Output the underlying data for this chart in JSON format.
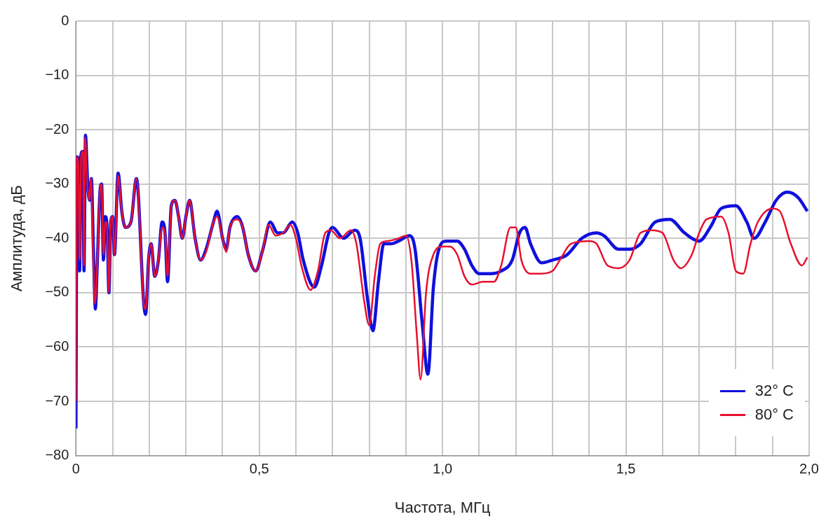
{
  "chart_data": {
    "type": "line",
    "xlabel": "Частота, МГц",
    "ylabel": "Амплитуда, дБ",
    "xlim": [
      0,
      2
    ],
    "ylim": [
      -80,
      0
    ],
    "xticks": [
      0,
      {
        "value": 0.1,
        "label": null
      },
      {
        "value": 0.2,
        "label": null
      },
      {
        "value": 0.3,
        "label": null
      },
      {
        "value": 0.4,
        "label": null
      },
      {
        "value": 0.5,
        "label": "0,5"
      },
      {
        "value": 0.6,
        "label": null
      },
      {
        "value": 0.7,
        "label": null
      },
      {
        "value": 0.8,
        "label": null
      },
      {
        "value": 0.9,
        "label": null
      },
      {
        "value": 1.0,
        "label": "1,0"
      },
      {
        "value": 1.1,
        "label": null
      },
      {
        "value": 1.2,
        "label": null
      },
      {
        "value": 1.3,
        "label": null
      },
      {
        "value": 1.4,
        "label": null
      },
      {
        "value": 1.5,
        "label": "1,5"
      },
      {
        "value": 1.6,
        "label": null
      },
      {
        "value": 1.7,
        "label": null
      },
      {
        "value": 1.8,
        "label": null
      },
      {
        "value": 1.9,
        "label": null
      },
      {
        "value": 2.0,
        "label": "2,0"
      }
    ],
    "yticks": [
      {
        "value": -80,
        "label": "−80"
      },
      {
        "value": -70,
        "label": "−70"
      },
      {
        "value": -60,
        "label": "−60"
      },
      {
        "value": -50,
        "label": "−50"
      },
      {
        "value": -40,
        "label": "−40"
      },
      {
        "value": -30,
        "label": "−30"
      },
      {
        "value": -20,
        "label": "−20"
      },
      {
        "value": -10,
        "label": "−10"
      },
      0
    ],
    "grid": true,
    "legend": "bottom right",
    "line_style": "solid",
    "marker": "none",
    "series": [
      {
        "name": "32° C",
        "color": "#1010dd",
        "x": [
          0,
          0.003,
          0.007,
          0.01,
          0.013,
          0.018,
          0.022,
          0.026,
          0.032,
          0.037,
          0.042,
          0.048,
          0.053,
          0.058,
          0.066,
          0.07,
          0.075,
          0.08,
          0.085,
          0.09,
          0.095,
          0.1,
          0.105,
          0.115,
          0.125,
          0.135,
          0.15,
          0.165,
          0.185,
          0.19,
          0.198,
          0.205,
          0.215,
          0.225,
          0.235,
          0.243,
          0.25,
          0.26,
          0.27,
          0.28,
          0.29,
          0.3,
          0.31,
          0.325,
          0.34,
          0.355,
          0.375,
          0.385,
          0.4,
          0.41,
          0.42,
          0.44,
          0.455,
          0.47,
          0.49,
          0.51,
          0.53,
          0.55,
          0.565,
          0.59,
          0.605,
          0.62,
          0.65,
          0.67,
          0.69,
          0.7,
          0.73,
          0.76,
          0.775,
          0.795,
          0.81,
          0.825,
          0.84,
          0.86,
          0.88,
          0.91,
          0.925,
          0.945,
          0.96,
          0.975,
          0.99,
          1.01,
          1.04,
          1.06,
          1.08,
          1.1,
          1.13,
          1.16,
          1.19,
          1.21,
          1.225,
          1.24,
          1.27,
          1.3,
          1.34,
          1.38,
          1.42,
          1.44,
          1.48,
          1.51,
          1.54,
          1.58,
          1.62,
          1.66,
          1.7,
          1.73,
          1.76,
          1.8,
          1.83,
          1.85,
          1.88,
          1.91,
          1.94,
          1.97,
          1.995
        ],
        "values": [
          -75,
          -25,
          -26,
          -46,
          -25,
          -24,
          -46,
          -21,
          -30,
          -33,
          -29,
          -43,
          -53,
          -45,
          -31,
          -30,
          -44,
          -36,
          -38,
          -50,
          -37,
          -36,
          -43,
          -28,
          -35,
          -38,
          -37,
          -29,
          -52,
          -54,
          -44,
          -41,
          -47,
          -44,
          -37,
          -39,
          -48,
          -34,
          -33,
          -36,
          -40,
          -36,
          -33,
          -40,
          -44,
          -42,
          -37,
          -35,
          -40,
          -42,
          -38,
          -36,
          -38,
          -43,
          -46,
          -42,
          -37,
          -39,
          -39,
          -37,
          -39,
          -44,
          -49,
          -45,
          -39,
          -38,
          -40,
          -38.5,
          -40,
          -51,
          -57,
          -48,
          -41,
          -41,
          -40.5,
          -39.5,
          -42,
          -56,
          -65,
          -49,
          -42,
          -40.5,
          -40.5,
          -42,
          -45,
          -46.5,
          -46.5,
          -46,
          -44,
          -39,
          -38,
          -41,
          -44.5,
          -44,
          -43,
          -40,
          -39,
          -39.5,
          -42,
          -42,
          -41,
          -37,
          -36.5,
          -39,
          -40.5,
          -38,
          -34.5,
          -34,
          -37,
          -40,
          -37,
          -33,
          -31.5,
          -32.5,
          -35
        ]
      },
      {
        "name": "80° C",
        "color": "#e8102e",
        "x": [
          0,
          0.002,
          0.006,
          0.01,
          0.014,
          0.019,
          0.022,
          0.025,
          0.031,
          0.036,
          0.041,
          0.047,
          0.052,
          0.058,
          0.066,
          0.07,
          0.075,
          0.08,
          0.085,
          0.09,
          0.095,
          0.1,
          0.105,
          0.115,
          0.125,
          0.135,
          0.15,
          0.165,
          0.185,
          0.19,
          0.198,
          0.205,
          0.215,
          0.225,
          0.235,
          0.243,
          0.25,
          0.26,
          0.27,
          0.28,
          0.29,
          0.3,
          0.31,
          0.325,
          0.34,
          0.355,
          0.375,
          0.385,
          0.4,
          0.41,
          0.42,
          0.44,
          0.455,
          0.47,
          0.49,
          0.51,
          0.525,
          0.545,
          0.565,
          0.585,
          0.6,
          0.615,
          0.64,
          0.66,
          0.68,
          0.695,
          0.72,
          0.75,
          0.765,
          0.785,
          0.8,
          0.815,
          0.83,
          0.85,
          0.88,
          0.9,
          0.915,
          0.93,
          0.94,
          0.955,
          0.975,
          1.0,
          1.02,
          1.04,
          1.06,
          1.08,
          1.11,
          1.14,
          1.16,
          1.185,
          1.2,
          1.215,
          1.24,
          1.27,
          1.3,
          1.32,
          1.35,
          1.4,
          1.42,
          1.45,
          1.48,
          1.51,
          1.54,
          1.57,
          1.6,
          1.63,
          1.65,
          1.68,
          1.7,
          1.72,
          1.76,
          1.78,
          1.8,
          1.82,
          1.84,
          1.86,
          1.9,
          1.92,
          1.95,
          1.98,
          1.995
        ],
        "values": [
          -70,
          -25,
          -26,
          -44,
          -25,
          -24,
          -45,
          -21.5,
          -30,
          -33,
          -29,
          -43,
          -52,
          -45,
          -31,
          -30,
          -43,
          -37,
          -38,
          -50,
          -37,
          -36,
          -43,
          -28.5,
          -35,
          -38,
          -37,
          -29,
          -52,
          -53,
          -44,
          -41,
          -47,
          -44,
          -38,
          -39,
          -47,
          -34,
          -33,
          -36,
          -40,
          -36,
          -33,
          -40,
          -44,
          -42.5,
          -37,
          -36,
          -40,
          -42.5,
          -38,
          -36.5,
          -38,
          -43,
          -46,
          -42,
          -37.5,
          -39.5,
          -39,
          -37.5,
          -40,
          -45,
          -49.5,
          -46,
          -39,
          -38.5,
          -40,
          -38.5,
          -41,
          -51,
          -56,
          -47,
          -41,
          -40.5,
          -40,
          -39.5,
          -44,
          -58,
          -66,
          -50,
          -43,
          -41.5,
          -41.5,
          -43,
          -47,
          -48.5,
          -48,
          -48,
          -45,
          -38,
          -38,
          -44,
          -46.5,
          -46.5,
          -46,
          -44,
          -41,
          -40.5,
          -41,
          -45,
          -45.5,
          -44,
          -39,
          -38.5,
          -39,
          -44,
          -45.5,
          -43,
          -39,
          -36.5,
          -36,
          -39,
          -46,
          -46.5,
          -41,
          -37,
          -34.5,
          -35,
          -41,
          -45,
          -43.5
        ]
      }
    ]
  }
}
